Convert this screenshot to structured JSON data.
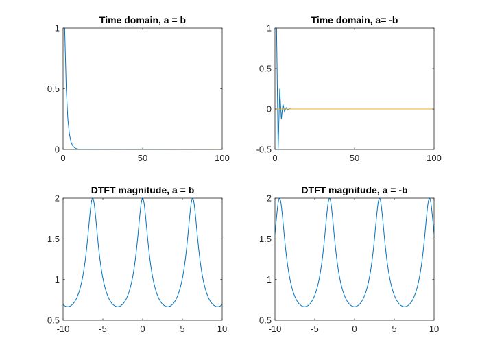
{
  "colors": {
    "series1": "#0072BD",
    "series2": "#EDB120",
    "axes": "#262626"
  },
  "chart_data": [
    {
      "type": "line",
      "title": "Time domain, a = b",
      "xlim": [
        0,
        100
      ],
      "ylim": [
        0,
        1
      ],
      "xticks": [
        0,
        50,
        100
      ],
      "yticks": [
        0,
        0.5,
        1
      ],
      "series": [
        {
          "color": "#0072BD",
          "x": [
            0,
            1,
            2,
            3,
            4,
            5,
            6,
            7,
            8,
            9,
            10,
            100
          ],
          "y": [
            1,
            1,
            0.5,
            0.25,
            0.125,
            0.0625,
            0.031,
            0.016,
            0.008,
            0.004,
            0.002,
            0
          ]
        },
        {
          "color": "#EDB120",
          "x": [
            0,
            100
          ],
          "y": [
            0,
            0
          ]
        }
      ]
    },
    {
      "type": "line",
      "title": "Time domain, a= -b",
      "xlim": [
        0,
        100
      ],
      "ylim": [
        -0.5,
        1
      ],
      "xticks": [
        0,
        50,
        100
      ],
      "yticks": [
        -0.5,
        0,
        0.5,
        1
      ],
      "series": [
        {
          "color": "#0072BD",
          "x": [
            0,
            1,
            2,
            3,
            4,
            5,
            6,
            7,
            8,
            9,
            10,
            100
          ],
          "y": [
            1,
            1,
            -0.5,
            0.25,
            -0.125,
            0.0625,
            -0.031,
            0.016,
            -0.008,
            0.004,
            0,
            0
          ]
        },
        {
          "color": "#EDB120",
          "x": [
            0,
            100
          ],
          "y": [
            0,
            0
          ]
        }
      ]
    },
    {
      "type": "line",
      "title": "DTFT magnitude, a = b",
      "xlim": [
        -10,
        10
      ],
      "ylim": [
        0.5,
        2
      ],
      "xticks": [
        -10,
        -5,
        0,
        5,
        10
      ],
      "yticks": [
        0.5,
        1,
        1.5,
        2
      ],
      "function": "1/sqrt(1.25 - cos(w))",
      "series": [
        {
          "color": "#0072BD"
        }
      ]
    },
    {
      "type": "line",
      "title": "DTFT magnitude, a = -b",
      "xlim": [
        -10,
        10
      ],
      "ylim": [
        0.5,
        2
      ],
      "xticks": [
        -10,
        -5,
        0,
        5,
        10
      ],
      "yticks": [
        0.5,
        1,
        1.5,
        2
      ],
      "function": "1/sqrt(1.25 + cos(w))",
      "series": [
        {
          "color": "#0072BD"
        }
      ]
    }
  ]
}
